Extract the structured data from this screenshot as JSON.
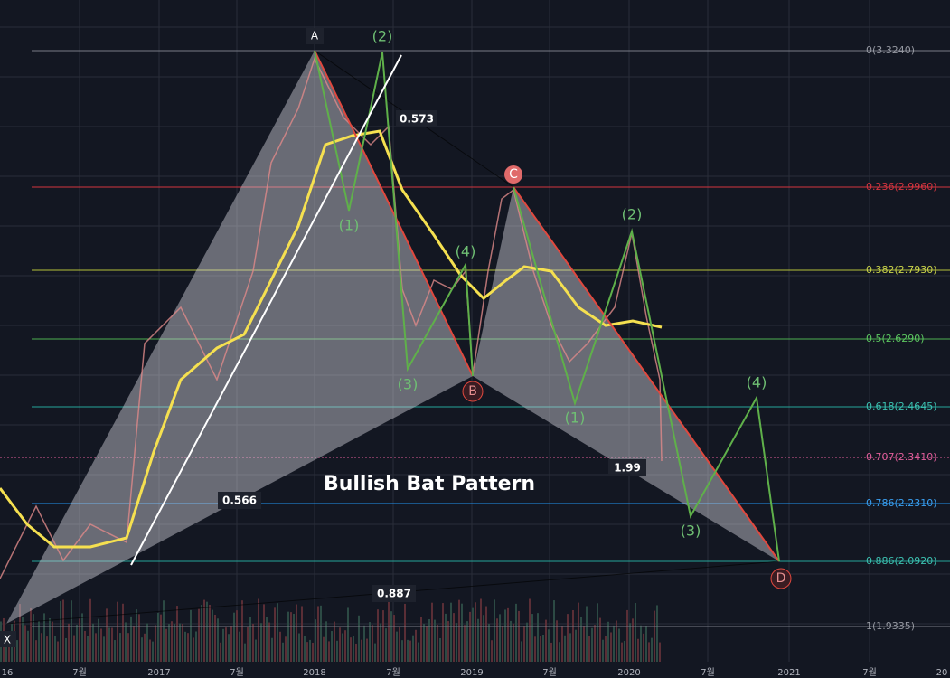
{
  "fib_levels": [
    "0(3.3240)",
    "0.236(2.9960)",
    "0.382(2.7930)",
    "0.5(2.6290)",
    "0.618(2.4645)",
    "0.707(2.3410)",
    "0.786(2.2310)",
    "0.886(2.0920)",
    "1(1.9335)"
  ],
  "x_axis": [
    "16",
    "7월",
    "2017",
    "7월",
    "2018",
    "7월",
    "2019",
    "7월",
    "2020",
    "7월",
    "2021",
    "7월",
    "20"
  ],
  "pattern": {
    "title": "Bullish Bat Pattern",
    "points": [
      "X",
      "A",
      "B",
      "C",
      "D"
    ],
    "ratios": [
      "0.573",
      "0.566",
      "1.99",
      "0.887"
    ]
  },
  "waves": [
    "(2)",
    "(1)",
    "(3)",
    "(4)",
    "(2)",
    "(1)",
    "(3)",
    "(4)"
  ]
}
